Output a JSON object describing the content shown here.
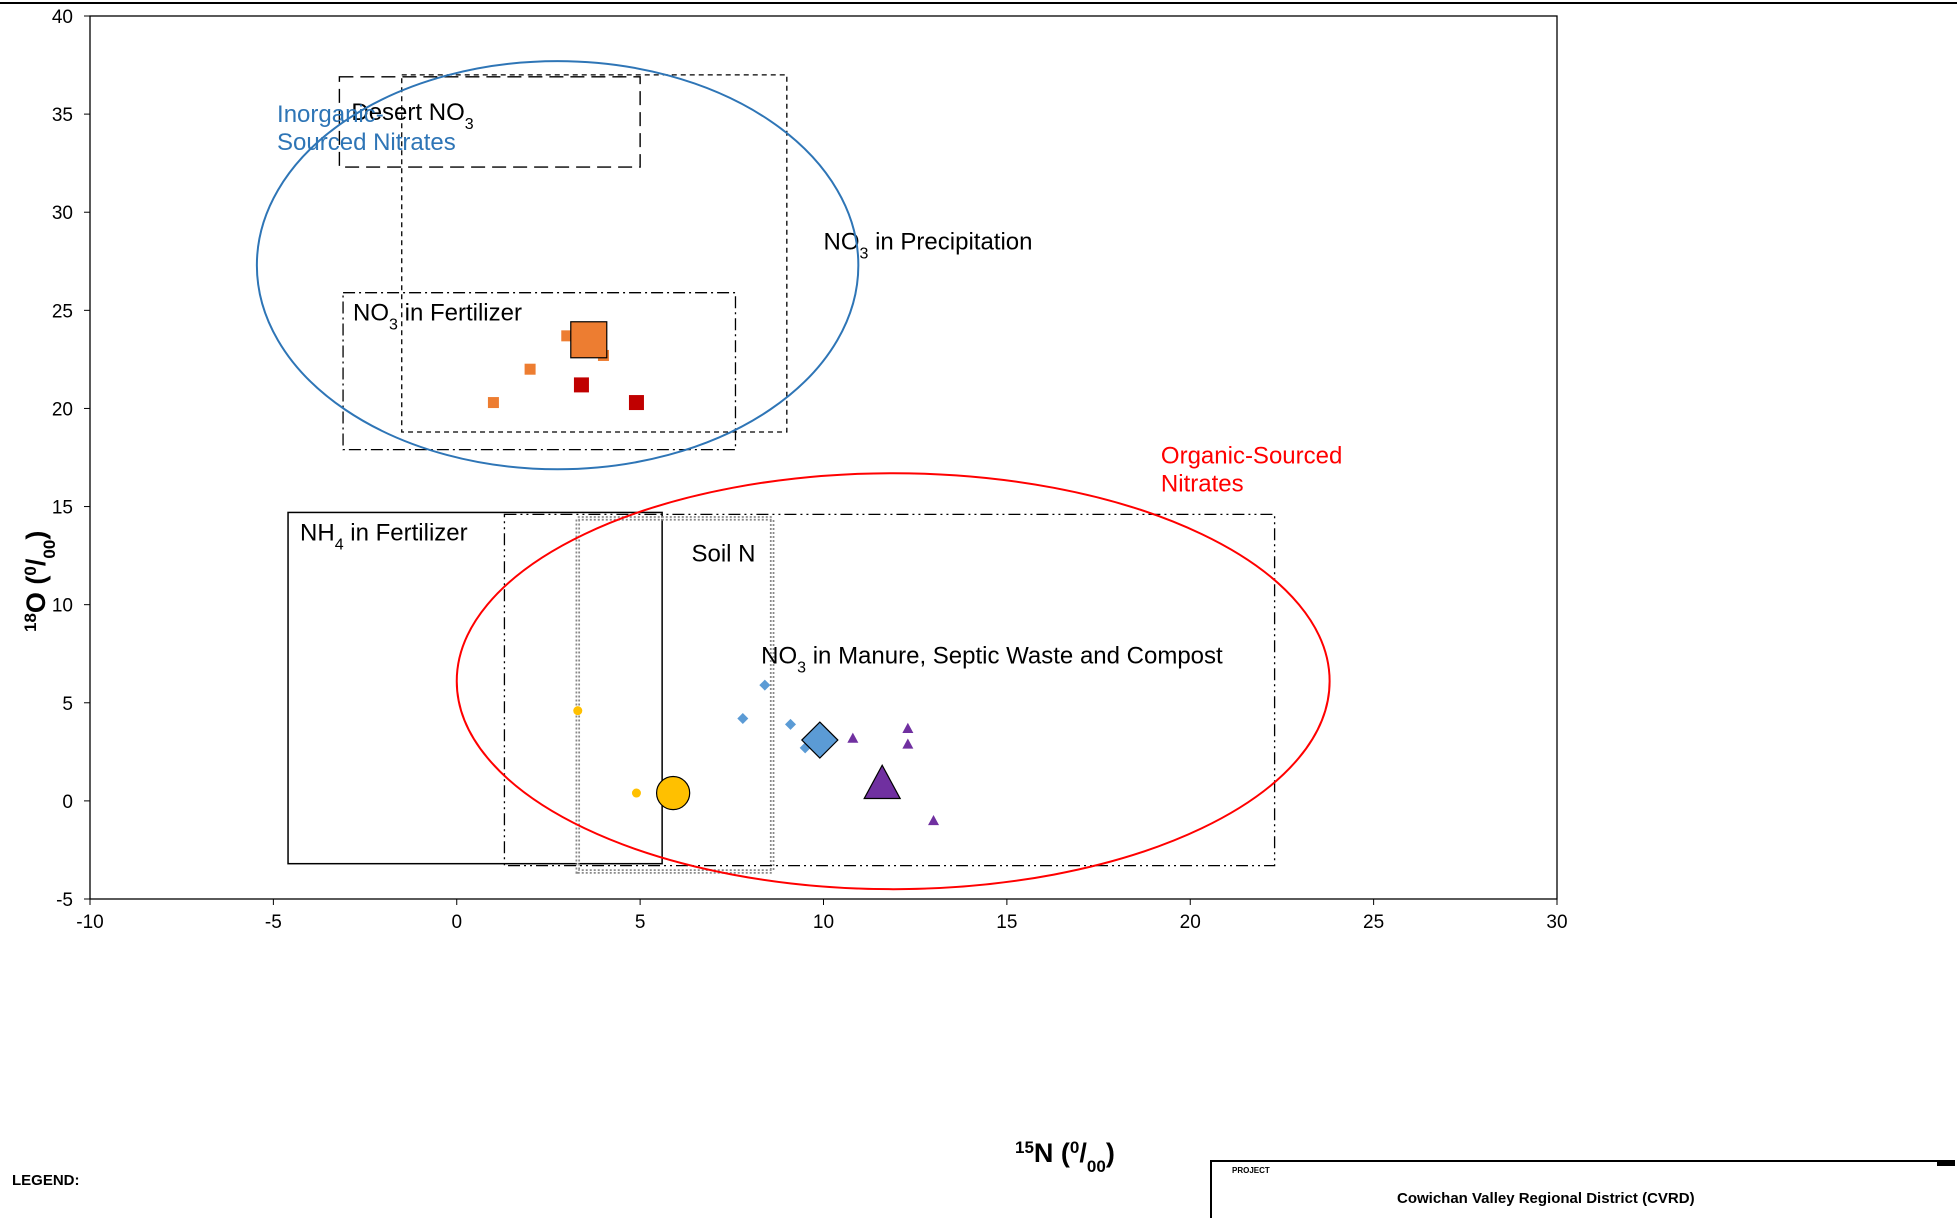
{
  "chart_data": {
    "type": "scatter",
    "xlabel": "15N (0/00)",
    "ylabel": "18O (0/00)",
    "xlim": [
      -10,
      30
    ],
    "ylim": [
      -5,
      40
    ],
    "x_ticks": [
      -10,
      -5,
      0,
      5,
      10,
      15,
      20,
      25,
      30
    ],
    "y_ticks": [
      -5,
      0,
      5,
      10,
      15,
      20,
      25,
      30,
      35,
      40
    ],
    "grid": false,
    "regions": [
      {
        "name": "Desert NO3",
        "label": "Desert NO",
        "sub": "3",
        "suffix": "",
        "x": [
          -3.2,
          5.0
        ],
        "y": [
          32.3,
          36.9
        ],
        "style": "long-dash"
      },
      {
        "name": "NO3 in Precipitation",
        "label": "NO",
        "sub": "3",
        "suffix": " in Precipitation",
        "x": [
          -1.5,
          9.0
        ],
        "y": [
          18.8,
          37.0
        ],
        "style": "short-dash"
      },
      {
        "name": "NO3 in Fertilizer",
        "label": "NO",
        "sub": "3",
        "suffix": " in Fertilizer",
        "x": [
          -3.1,
          7.6
        ],
        "y": [
          17.9,
          25.9
        ],
        "style": "dash-dot"
      },
      {
        "name": "NH4 in Fertilizer",
        "label": "NH",
        "sub": "4",
        "suffix": " in Fertilizer",
        "x": [
          -4.6,
          5.6
        ],
        "y": [
          -3.2,
          14.7
        ],
        "style": "solid"
      },
      {
        "name": "Soil N",
        "label": "Soil N",
        "sub": "",
        "suffix": "",
        "x": [
          3.3,
          8.6
        ],
        "y": [
          -3.6,
          14.4
        ],
        "style": "double-dot"
      },
      {
        "name": "NO3 in Manure, Septic Waste and Compost",
        "label": "NO",
        "sub": "3",
        "suffix": " in Manure, Septic Waste and Compost",
        "x": [
          1.3,
          22.3
        ],
        "y": [
          -3.3,
          14.6
        ],
        "style": "dash-dot-dot"
      }
    ],
    "groups": [
      {
        "label_lines": [
          "Inorganic-",
          "Sourced Nitrates"
        ],
        "color": "#2e75b6",
        "center": [
          2.75,
          27.3
        ],
        "radii": [
          8.2,
          10.4
        ]
      },
      {
        "label_lines": [
          "Organic-Sourced",
          "Nitrates"
        ],
        "color": "#ff0000",
        "center": [
          11.9,
          6.1
        ],
        "radii": [
          11.9,
          10.6
        ]
      }
    ],
    "series": [
      {
        "marker": "square",
        "color": "#ed7d31",
        "size": "small",
        "points": [
          [
            3.0,
            23.7
          ],
          [
            4.0,
            22.7
          ],
          [
            2.0,
            22.0
          ],
          [
            1.0,
            20.3
          ]
        ]
      },
      {
        "marker": "square",
        "color": "#ed7d31",
        "size": "large",
        "points": [
          [
            3.6,
            23.5
          ]
        ]
      },
      {
        "marker": "square",
        "color": "#c00000",
        "size": "medium",
        "points": [
          [
            3.4,
            21.2
          ],
          [
            4.9,
            20.3
          ]
        ]
      },
      {
        "marker": "diamond",
        "color": "#5b9bd5",
        "size": "small",
        "points": [
          [
            8.4,
            5.9
          ],
          [
            7.8,
            4.2
          ],
          [
            9.1,
            3.9
          ],
          [
            9.5,
            2.7
          ]
        ]
      },
      {
        "marker": "diamond",
        "color": "#5b9bd5",
        "size": "large",
        "points": [
          [
            9.9,
            3.1
          ]
        ]
      },
      {
        "marker": "triangle",
        "color": "#7030a0",
        "size": "small",
        "points": [
          [
            10.8,
            3.2
          ],
          [
            12.3,
            3.7
          ],
          [
            12.3,
            2.9
          ],
          [
            13.0,
            -1.0
          ]
        ]
      },
      {
        "marker": "triangle",
        "color": "#7030a0",
        "size": "large",
        "points": [
          [
            11.6,
            0.9
          ]
        ]
      },
      {
        "marker": "circle",
        "color": "#ffc000",
        "size": "small",
        "points": [
          [
            3.3,
            4.6
          ],
          [
            4.9,
            0.4
          ]
        ]
      },
      {
        "marker": "circle",
        "color": "#ffc000",
        "size": "large",
        "points": [
          [
            5.9,
            0.4
          ]
        ]
      }
    ]
  },
  "legend": {
    "title": "LEGEND:"
  },
  "title_block": {
    "label": "PROJECT",
    "project": "Cowichan Valley Regional District (CVRD)"
  }
}
